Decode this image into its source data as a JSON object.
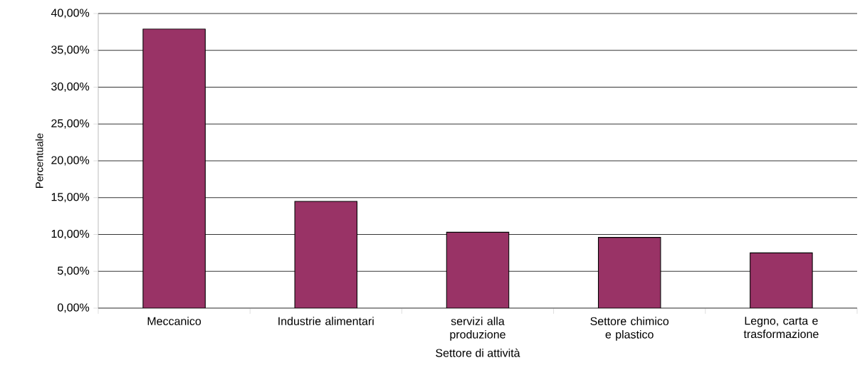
{
  "chart_data": {
    "type": "bar",
    "xlabel": "Settore di attività",
    "ylabel": "Percentuale",
    "categories": [
      "Meccanico",
      "Industrie alimentari",
      "servizi alla produzione",
      "Settore chimico e plastico",
      "Legno, carta e trasformazione"
    ],
    "values": [
      37.9,
      14.5,
      10.3,
      9.6,
      7.5
    ],
    "color": "#993366",
    "ylim": [
      0,
      40
    ],
    "yticks": [
      {
        "value": 0,
        "label": "0,00%"
      },
      {
        "value": 5,
        "label": "5,00%"
      },
      {
        "value": 10,
        "label": "10,00%"
      },
      {
        "value": 15,
        "label": "15,00%"
      },
      {
        "value": 20,
        "label": "20,00%"
      },
      {
        "value": 25,
        "label": "25,00%"
      },
      {
        "value": 30,
        "label": "30,00%"
      },
      {
        "value": 35,
        "label": "35,00%"
      },
      {
        "value": 40,
        "label": "40,00%"
      }
    ],
    "grid": "y"
  }
}
